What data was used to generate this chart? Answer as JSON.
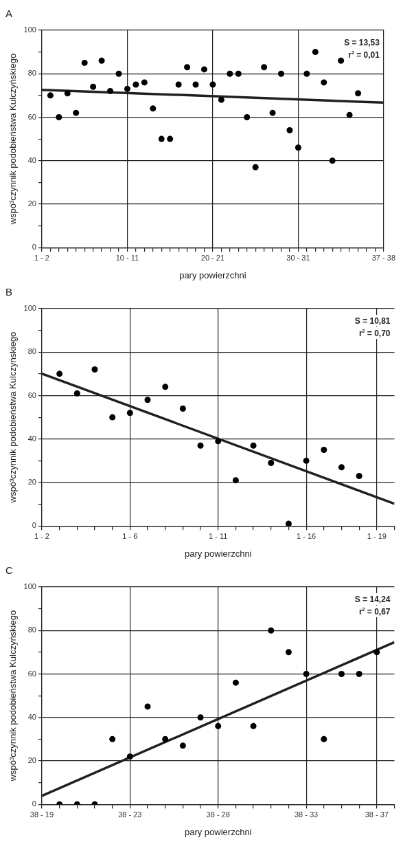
{
  "chart_data": [
    {
      "type": "scatter",
      "title": "A",
      "xlabel": "pary powierzchni",
      "ylabel": "wspó³czynnik podobieństwa Kulczyńskiego",
      "categories": [
        "1 - 2",
        null,
        null,
        null,
        null,
        null,
        null,
        null,
        null,
        null,
        "10 - 11",
        null,
        null,
        null,
        null,
        null,
        null,
        null,
        null,
        null,
        "20 - 21",
        null,
        null,
        null,
        null,
        null,
        null,
        null,
        null,
        null,
        "30 - 31",
        null,
        null,
        null,
        null,
        null,
        null,
        null,
        null,
        null,
        "37 - 38"
      ],
      "series": [
        {
          "type": "scatter",
          "color": "#000000",
          "marker": "circle",
          "values": [
            null,
            70,
            60,
            71,
            62,
            85,
            74,
            86,
            72,
            80,
            73,
            75,
            76,
            64,
            50,
            50,
            75,
            83,
            75,
            82,
            75,
            68,
            80,
            80,
            60,
            37,
            83,
            62,
            80,
            54,
            46,
            80,
            90,
            76,
            40,
            86,
            61,
            71,
            null,
            null,
            null
          ]
        },
        {
          "type": "line",
          "color": "#231f20",
          "marker": "none",
          "line_style": "solid",
          "values": [
            72.6,
            null,
            null,
            null,
            null,
            null,
            null,
            null,
            null,
            null,
            null,
            null,
            null,
            null,
            null,
            null,
            null,
            null,
            null,
            null,
            null,
            null,
            null,
            null,
            null,
            null,
            null,
            null,
            null,
            null,
            null,
            null,
            null,
            null,
            null,
            null,
            null,
            null,
            null,
            null,
            66.7
          ]
        }
      ],
      "ylim": [
        0,
        100
      ],
      "yticks": [
        0,
        {
          "value": 10,
          "label": null
        },
        20,
        {
          "value": 30,
          "label": null
        },
        40,
        {
          "value": 50,
          "label": null
        },
        60,
        {
          "value": 70,
          "label": null
        },
        80,
        {
          "value": 90,
          "label": null
        },
        100
      ],
      "grid": true,
      "annotations": [
        "S = 13,53",
        "r$^{2}$ = 0,01"
      ]
    },
    {
      "type": "scatter",
      "title": "B",
      "xlabel": "pary powierzchni",
      "ylabel": "wspó³czynnik podobieństwa Kulczyńskiego",
      "categories": [
        "1 - 2",
        null,
        null,
        null,
        null,
        "1 - 6",
        null,
        null,
        null,
        null,
        "1 - 11",
        null,
        null,
        null,
        null,
        "1 - 16",
        null,
        null,
        null,
        "1 - 19",
        null
      ],
      "series": [
        {
          "type": "scatter",
          "color": "#000000",
          "marker": "circle",
          "values": [
            null,
            70,
            61,
            72,
            50,
            52,
            58,
            64,
            54,
            37,
            39,
            21,
            37,
            29,
            1,
            30,
            35,
            27,
            23,
            null,
            null
          ]
        },
        {
          "type": "line",
          "color": "#231f20",
          "marker": "none",
          "line_style": "solid",
          "values": [
            70.1,
            null,
            null,
            null,
            null,
            null,
            null,
            null,
            null,
            null,
            null,
            null,
            null,
            null,
            null,
            null,
            null,
            null,
            null,
            null,
            10.2
          ]
        }
      ],
      "ylim": [
        0,
        100
      ],
      "yticks": [
        0,
        {
          "value": 10,
          "label": null
        },
        20,
        {
          "value": 30,
          "label": null
        },
        40,
        {
          "value": 50,
          "label": null
        },
        60,
        {
          "value": 70,
          "label": null
        },
        80,
        {
          "value": 90,
          "label": null
        },
        100
      ],
      "grid": true,
      "annotations": [
        "S = 10,81",
        "r$^{2}$ = 0,70"
      ]
    },
    {
      "type": "scatter",
      "title": "C",
      "xlabel": "pary powierzchni",
      "ylabel": "wspó³czynnik podobieństwa Kulczyńskiego",
      "categories": [
        "38 - 19",
        null,
        null,
        null,
        null,
        "38 - 23",
        null,
        null,
        null,
        null,
        "38 - 28",
        null,
        null,
        null,
        null,
        "38 - 33",
        null,
        null,
        null,
        "38 - 37",
        null
      ],
      "series": [
        {
          "type": "scatter",
          "color": "#000000",
          "marker": "circle",
          "values": [
            null,
            0,
            0,
            0,
            30,
            22,
            45,
            30,
            27,
            40,
            36,
            56,
            36,
            80,
            70,
            60,
            30,
            60,
            60,
            70,
            null
          ]
        },
        {
          "type": "line",
          "color": "#231f20",
          "marker": "none",
          "line_style": "solid",
          "values": [
            3.9,
            null,
            null,
            null,
            null,
            null,
            null,
            null,
            null,
            null,
            null,
            null,
            null,
            null,
            null,
            null,
            null,
            null,
            null,
            null,
            74.6
          ]
        }
      ],
      "ylim": [
        0,
        100
      ],
      "yticks": [
        0,
        {
          "value": 10,
          "label": null
        },
        20,
        {
          "value": 30,
          "label": null
        },
        40,
        {
          "value": 50,
          "label": null
        },
        60,
        {
          "value": 70,
          "label": null
        },
        80,
        {
          "value": 90,
          "label": null
        },
        100
      ],
      "grid": true,
      "annotations": [
        "S = 14,24",
        "r$^{2}$ = 0,67"
      ]
    }
  ]
}
